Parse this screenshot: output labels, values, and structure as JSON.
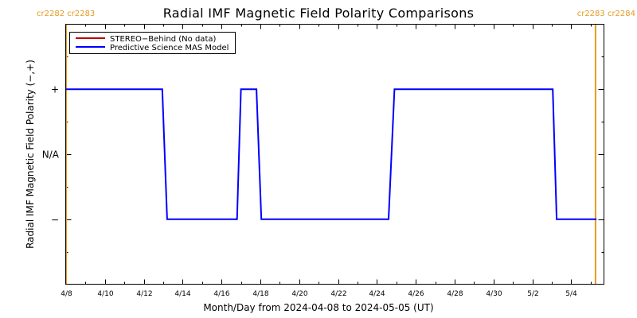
{
  "chart_data": {
    "type": "line",
    "title": "Radial IMF Magnetic Field Polarity Comparisons",
    "xlabel": "Month/Day from 2024-04-08 to 2024-05-05 (UT)",
    "ylabel": "Radial IMF Magnetic Field Polarity (−,+)",
    "x_range_days": [
      0,
      27.4
    ],
    "y_ticks": [
      {
        "value": 1,
        "label": "+"
      },
      {
        "value": 0,
        "label": "N/A"
      },
      {
        "value": -1,
        "label": "−"
      }
    ],
    "ylim": [
      -2,
      2
    ],
    "x_ticks": [
      {
        "day": 0,
        "label": "4/8"
      },
      {
        "day": 2,
        "label": "4/10"
      },
      {
        "day": 4,
        "label": "4/12"
      },
      {
        "day": 6,
        "label": "4/14"
      },
      {
        "day": 8,
        "label": "4/16"
      },
      {
        "day": 10,
        "label": "4/18"
      },
      {
        "day": 12,
        "label": "4/20"
      },
      {
        "day": 14,
        "label": "4/22"
      },
      {
        "day": 16,
        "label": "4/24"
      },
      {
        "day": 18,
        "label": "4/26"
      },
      {
        "day": 20,
        "label": "4/28"
      },
      {
        "day": 22,
        "label": "4/30"
      },
      {
        "day": 24,
        "label": "5/2"
      },
      {
        "day": 26,
        "label": "5/4"
      }
    ],
    "carrington_markers": [
      {
        "day": 0.0,
        "label": "cr2282 cr2283",
        "side": "left"
      },
      {
        "day": 27.25,
        "label": "cr2283 cr2284",
        "side": "right"
      }
    ],
    "series": [
      {
        "name": "STEREO−Behind (No data)",
        "color": "#c00000",
        "points": []
      },
      {
        "name": "Predictive Science MAS Model",
        "color": "#0000ff",
        "points": [
          [
            0.0,
            1
          ],
          [
            4.95,
            1
          ],
          [
            5.2,
            -1
          ],
          [
            8.8,
            -1
          ],
          [
            9.0,
            1
          ],
          [
            9.8,
            1
          ],
          [
            10.05,
            -1
          ],
          [
            16.6,
            -1
          ],
          [
            16.9,
            1
          ],
          [
            25.05,
            1
          ],
          [
            25.25,
            -1
          ],
          [
            27.3,
            -1
          ]
        ]
      }
    ],
    "legend_position": "top-left",
    "colors": {
      "marker": "#e69a22",
      "axis": "#000000"
    }
  }
}
